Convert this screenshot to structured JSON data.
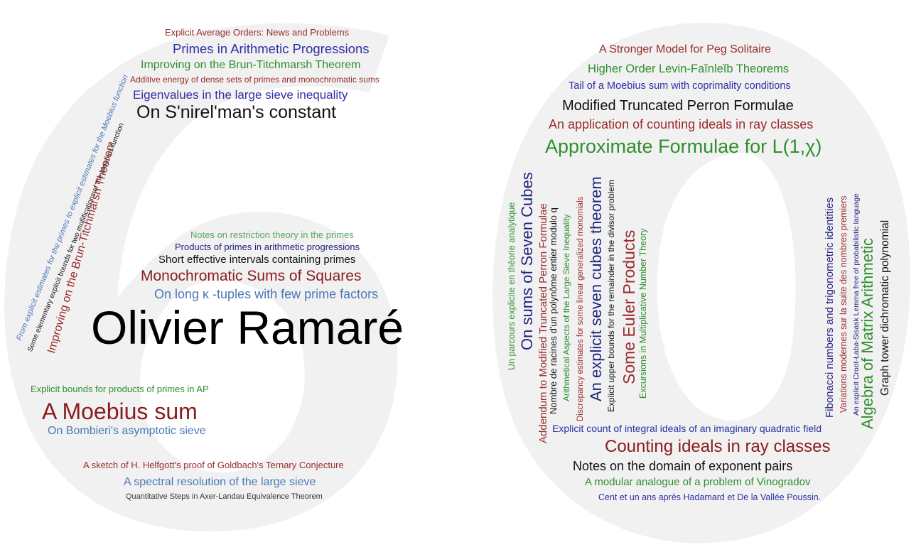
{
  "colors": {
    "background": "#ffffff",
    "shape": "#f1f1f1",
    "red": "#9b2b2b",
    "blue": "#2f2fa6",
    "green": "#2f8f2f",
    "black": "#111111",
    "lightblue": "#4a78b8",
    "lightgreen": "#5aa65a",
    "maroon": "#8a1c1c",
    "navy": "#232380"
  },
  "center": {
    "title": "Olivier Ramaré"
  },
  "six": {
    "top": [
      "Explicit Average Orders: News and Problems",
      "Primes in Arithmetic Progressions",
      "Improving on the Brun-Titchmarsh Theorem",
      "Additive energy of dense sets of primes and monochromatic sums",
      "Eigenvalues in the large sieve inequality",
      "On S'nirel'man's constant"
    ],
    "diagonal": [
      "From explicit estimates for the primes to explicit estimates for the Moebius function",
      "Some elementary explicit bounds for two mollifications of the Moebius function",
      "Improving on the Brun-Titchmarsh Theorem"
    ],
    "middle": [
      "Notes on restriction theory in the primes",
      "Products of primes in arithmetic progressions",
      "Short effective intervals containing primes",
      "Monochromatic Sums of Squares",
      "On long κ -tuples with few prime factors"
    ],
    "lower": [
      "Explicit bounds for products of primes in AP",
      "A Moebius sum",
      "On Bombieri's asymptotic sieve",
      "A sketch of H. Helfgott's proof of Goldbach's Ternary Conjecture",
      "A spectral resolution of the large sieve",
      "Quantitative Steps in Axer-Landau Equivalence Theorem"
    ]
  },
  "zero": {
    "top": [
      "A Stronger Model for Peg Solitaire",
      "Higher Order Levin-Faĭnleĭb Theorems",
      "Tail of a Moebius sum with coprimality conditions",
      "Modified Truncated Perron Formulae",
      "An application of counting ideals in ray classes",
      "Approximate Formulae for L(1,χ)"
    ],
    "left_vertical": [
      "Un parcours explicite en théorie analytique",
      "On sums of Seven Cubes",
      "Addendum to Modified Truncated Perron Formulae",
      "Nombre de racines d'un polynôme entier modulo q",
      "Arithmetical Aspects of the Large Sieve Inequality",
      "Discrepancy estimates for some linear generalized monomials",
      "An explicit seven cubes theorem",
      "Explicit upper bounds for the remainder in the divisor problem",
      "Some Euler Products",
      "Excursions in Multiplicative Number Theory"
    ],
    "right_vertical": [
      "Fibonacci numbers and trigonometric identities",
      "Variations modernes sur la suite des nombres premiers",
      "An explicit Croot-Łaba-Sisask Lemma free of probabilistic language",
      "Algebra of Matrix Arithmetic",
      "Graph tower dichromatic polynomial"
    ],
    "bottom": [
      "Explicit count of integral ideals of an imaginary quadratic field",
      "Counting ideals in ray classes",
      "Notes on the domain of exponent pairs",
      "A modular analogue of a problem of Vinogradov",
      "Cent et un ans après Hadamard et De la Vallée Poussin."
    ]
  }
}
